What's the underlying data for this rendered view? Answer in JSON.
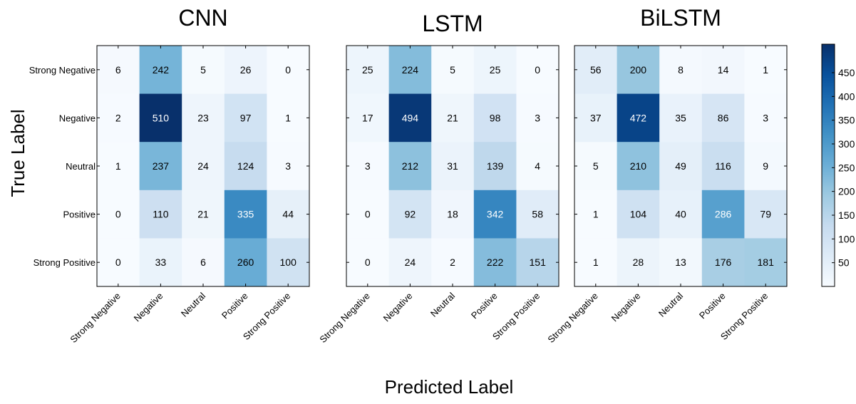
{
  "figure": {
    "ylabel": "True Label",
    "xlabel": "Predicted Label",
    "colorbar_ticks": [
      50,
      100,
      150,
      200,
      250,
      300,
      350,
      400,
      450
    ],
    "colorbar_range": [
      0,
      510
    ],
    "colormap": {
      "low": "#f7fbff",
      "mid": "#6baed6",
      "high": "#08306b"
    }
  },
  "chart_data": [
    {
      "type": "heatmap",
      "title": "CNN",
      "row_labels": [
        "Strong Negative",
        "Negative",
        "Neutral",
        "Positive",
        "Strong Positive"
      ],
      "col_labels": [
        "Strong Negative",
        "Negative",
        "Neutral",
        "Positive",
        "Strong Positive"
      ],
      "values": [
        [
          6,
          242,
          5,
          26,
          0
        ],
        [
          2,
          510,
          23,
          97,
          1
        ],
        [
          1,
          237,
          24,
          124,
          3
        ],
        [
          0,
          110,
          21,
          335,
          44
        ],
        [
          0,
          33,
          6,
          260,
          100
        ]
      ]
    },
    {
      "type": "heatmap",
      "title": "LSTM",
      "row_labels": [
        "Strong Negative",
        "Negative",
        "Neutral",
        "Positive",
        "Strong Positive"
      ],
      "col_labels": [
        "Strong Negative",
        "Negative",
        "Neutral",
        "Positive",
        "Strong Positive"
      ],
      "values": [
        [
          25,
          224,
          5,
          25,
          0
        ],
        [
          17,
          494,
          21,
          98,
          3
        ],
        [
          3,
          212,
          31,
          139,
          4
        ],
        [
          0,
          92,
          18,
          342,
          58
        ],
        [
          0,
          24,
          2,
          222,
          151
        ]
      ]
    },
    {
      "type": "heatmap",
      "title": "BiLSTM",
      "row_labels": [
        "Strong Negative",
        "Negative",
        "Neutral",
        "Positive",
        "Strong Positive"
      ],
      "col_labels": [
        "Strong Negative",
        "Negative",
        "Neutral",
        "Positive",
        "Strong Positive"
      ],
      "values": [
        [
          56,
          200,
          8,
          14,
          1
        ],
        [
          37,
          472,
          35,
          86,
          3
        ],
        [
          5,
          210,
          49,
          116,
          9
        ],
        [
          1,
          104,
          40,
          286,
          79
        ],
        [
          1,
          28,
          13,
          176,
          181
        ]
      ]
    }
  ]
}
